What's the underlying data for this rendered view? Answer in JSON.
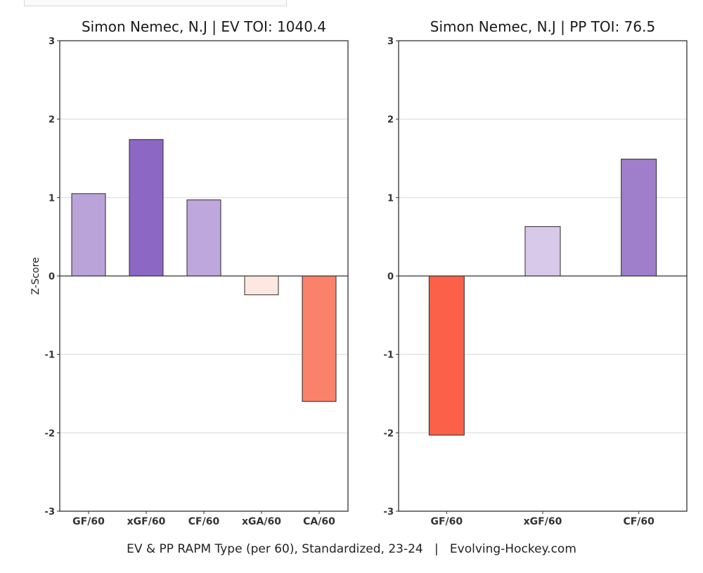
{
  "footer": "EV & PP RAPM Type (per 60), Standardized, 23-24   |   Evolving-Hockey.com",
  "chart_data": [
    {
      "type": "bar",
      "title": "Simon Nemec, N.J  |  EV TOI: 1040.4",
      "ylabel": "Z-Score",
      "xlabel": "",
      "ylim": [
        -3,
        3
      ],
      "yticks": [
        3,
        2,
        1,
        0,
        -1,
        -2,
        -3
      ],
      "grid": true,
      "categories": [
        "GF/60",
        "xGF/60",
        "CF/60",
        "xGA/60",
        "CA/60"
      ],
      "values": [
        1.05,
        1.74,
        0.97,
        -0.24,
        -1.6
      ],
      "colors": [
        "#b9a3d9",
        "#8c68c4",
        "#bda7dc",
        "#fde8df",
        "#fb826a"
      ]
    },
    {
      "type": "bar",
      "title": "Simon Nemec, N.J  |  PP TOI: 76.5",
      "ylabel": "",
      "xlabel": "",
      "ylim": [
        -3,
        3
      ],
      "yticks": [
        3,
        2,
        1,
        0,
        -1,
        -2,
        -3
      ],
      "grid": true,
      "categories": [
        "GF/60",
        "xGF/60",
        "CF/60"
      ],
      "values": [
        -2.03,
        0.63,
        1.49
      ],
      "colors": [
        "#fb6148",
        "#d8c9ea",
        "#9f7ecb"
      ]
    }
  ]
}
